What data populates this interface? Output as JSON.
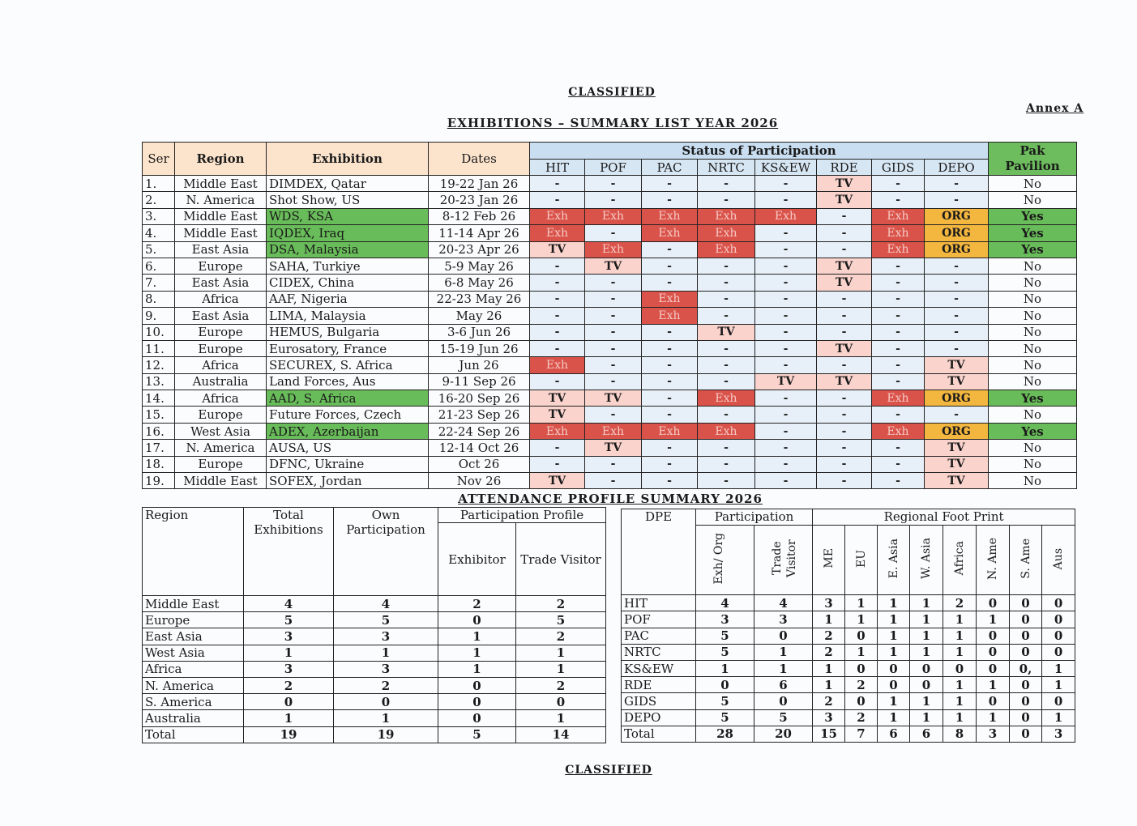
{
  "header": {
    "classified_top": "CLASSIFIED",
    "annex": "Annex A",
    "title": "EXHIBITIONS – SUMMARY LIST YEAR 2026",
    "subtitle": "ATTENDANCE PROFILE SUMMARY 2026",
    "classified_bottom": "CLASSIFIED"
  },
  "colors": {
    "exhibitor": "#d9534a",
    "trade_visitor": "#f9d3cc",
    "organizer": "#f3b63e",
    "pavilion_yes": "#69bc5a",
    "status_header": "#c9def0",
    "peach_header": "#fbe3cc"
  },
  "main_table": {
    "headers": {
      "ser": "Ser",
      "region": "Region",
      "exhibition": "Exhibition",
      "dates": "Dates",
      "status": "Status of Participation",
      "pak_pavilion": "Pak Pavilion",
      "dpe": [
        "HIT",
        "POF",
        "PAC",
        "NRTC",
        "KS&EW",
        "RDE",
        "GIDS",
        "DEPO"
      ]
    },
    "rows": [
      {
        "ser": "1.",
        "region": "Middle East",
        "exhibition": "DIMDEX, Qatar",
        "dates": "19-22 Jan 26",
        "status": [
          "-",
          "-",
          "-",
          "-",
          "-",
          "TV",
          "-",
          "-"
        ],
        "pavilion": "No"
      },
      {
        "ser": "2.",
        "region": "N. America",
        "exhibition": "Shot Show, US",
        "dates": "20-23 Jan 26",
        "status": [
          "-",
          "-",
          "-",
          "-",
          "-",
          "TV",
          "-",
          "-"
        ],
        "pavilion": "No"
      },
      {
        "ser": "3.",
        "region": "Middle East",
        "exhibition": "WDS, KSA",
        "dates": "8-12 Feb 26",
        "status": [
          "Exh",
          "Exh",
          "Exh",
          "Exh",
          "Exh",
          "-",
          "Exh",
          "ORG"
        ],
        "pavilion": "Yes"
      },
      {
        "ser": "4.",
        "region": "Middle East",
        "exhibition": "IQDEX, Iraq",
        "dates": "11-14 Apr 26",
        "status": [
          "Exh",
          "-",
          "Exh",
          "Exh",
          "-",
          "-",
          "Exh",
          "ORG"
        ],
        "pavilion": "Yes"
      },
      {
        "ser": "5.",
        "region": "East Asia",
        "exhibition": "DSA, Malaysia",
        "dates": "20-23 Apr 26",
        "status": [
          "TV",
          "Exh",
          "-",
          "Exh",
          "-",
          "-",
          "Exh",
          "ORG"
        ],
        "pavilion": "Yes"
      },
      {
        "ser": "6.",
        "region": "Europe",
        "exhibition": "SAHA, Turkiye",
        "dates": "5-9 May 26",
        "status": [
          "-",
          "TV",
          "-",
          "-",
          "-",
          "TV",
          "-",
          "-"
        ],
        "pavilion": "No"
      },
      {
        "ser": "7.",
        "region": "East Asia",
        "exhibition": "CIDEX, China",
        "dates": "6-8 May 26",
        "status": [
          "-",
          "-",
          "-",
          "-",
          "-",
          "TV",
          "-",
          "-"
        ],
        "pavilion": "No"
      },
      {
        "ser": "8.",
        "region": "Africa",
        "exhibition": "AAF, Nigeria",
        "dates": "22-23 May 26",
        "status": [
          "-",
          "-",
          "Exh",
          "-",
          "-",
          "-",
          "-",
          "-"
        ],
        "pavilion": "No"
      },
      {
        "ser": "9.",
        "region": "East Asia",
        "exhibition": "LIMA, Malaysia",
        "dates": "May 26",
        "status": [
          "-",
          "-",
          "Exh",
          "-",
          "-",
          "-",
          "-",
          "-"
        ],
        "pavilion": "No"
      },
      {
        "ser": "10.",
        "region": "Europe",
        "exhibition": "HEMUS, Bulgaria",
        "dates": "3-6 Jun 26",
        "status": [
          "-",
          "-",
          "-",
          "TV",
          "-",
          "-",
          "-",
          "-"
        ],
        "pavilion": "No"
      },
      {
        "ser": "11.",
        "region": "Europe",
        "exhibition": "Eurosatory, France",
        "dates": "15-19 Jun 26",
        "status": [
          "-",
          "-",
          "-",
          "-",
          "-",
          "TV",
          "-",
          "-"
        ],
        "pavilion": "No"
      },
      {
        "ser": "12.",
        "region": "Africa",
        "exhibition": "SECUREX, S. Africa",
        "dates": "Jun 26",
        "status": [
          "Exh",
          "-",
          "-",
          "-",
          "-",
          "-",
          "-",
          "TV"
        ],
        "pavilion": "No"
      },
      {
        "ser": "13.",
        "region": "Australia",
        "exhibition": "Land Forces, Aus",
        "dates": "9-11 Sep 26",
        "status": [
          "-",
          "-",
          "-",
          "-",
          "TV",
          "TV",
          "-",
          "TV"
        ],
        "pavilion": "No"
      },
      {
        "ser": "14.",
        "region": "Africa",
        "exhibition": "AAD, S. Africa",
        "dates": "16-20 Sep 26",
        "status": [
          "TV",
          "TV",
          "-",
          "Exh",
          "-",
          "-",
          "Exh",
          "ORG"
        ],
        "pavilion": "Yes"
      },
      {
        "ser": "15.",
        "region": "Europe",
        "exhibition": "Future Forces, Czech",
        "dates": "21-23 Sep 26",
        "status": [
          "TV",
          "-",
          "-",
          "-",
          "-",
          "-",
          "-",
          "-"
        ],
        "pavilion": "No"
      },
      {
        "ser": "16.",
        "region": "West Asia",
        "exhibition": "ADEX, Azerbaijan",
        "dates": "22-24 Sep 26",
        "status": [
          "Exh",
          "Exh",
          "Exh",
          "Exh",
          "-",
          "-",
          "Exh",
          "ORG"
        ],
        "pavilion": "Yes"
      },
      {
        "ser": "17.",
        "region": "N. America",
        "exhibition": "AUSA, US",
        "dates": "12-14 Oct 26",
        "status": [
          "-",
          "TV",
          "-",
          "-",
          "-",
          "-",
          "-",
          "TV"
        ],
        "pavilion": "No"
      },
      {
        "ser": "18.",
        "region": "Europe",
        "exhibition": "DFNC, Ukraine",
        "dates": "Oct 26",
        "status": [
          "-",
          "-",
          "-",
          "-",
          "-",
          "-",
          "-",
          "TV"
        ],
        "pavilion": "No"
      },
      {
        "ser": "19.",
        "region": "Middle East",
        "exhibition": "SOFEX, Jordan",
        "dates": "Nov 26",
        "status": [
          "TV",
          "-",
          "-",
          "-",
          "-",
          "-",
          "-",
          "TV"
        ],
        "pavilion": "No"
      }
    ]
  },
  "region_table": {
    "headers": {
      "region": "Region",
      "total": "Total Exhibitions",
      "own": "Own Participation",
      "profile": "Participation Profile",
      "exhibitor": "Exhibitor",
      "trade_visitor": "Trade Visitor"
    },
    "rows": [
      {
        "region": "Middle East",
        "total": "4",
        "own": "4",
        "exh": "2",
        "tv": "2"
      },
      {
        "region": "Europe",
        "total": "5",
        "own": "5",
        "exh": "0",
        "tv": "5"
      },
      {
        "region": "East Asia",
        "total": "3",
        "own": "3",
        "exh": "1",
        "tv": "2"
      },
      {
        "region": "West Asia",
        "total": "1",
        "own": "1",
        "exh": "1",
        "tv": "1"
      },
      {
        "region": "Africa",
        "total": "3",
        "own": "3",
        "exh": "1",
        "tv": "1"
      },
      {
        "region": "N. America",
        "total": "2",
        "own": "2",
        "exh": "0",
        "tv": "2"
      },
      {
        "region": "S. America",
        "total": "0",
        "own": "0",
        "exh": "0",
        "tv": "0"
      },
      {
        "region": "Australia",
        "total": "1",
        "own": "1",
        "exh": "0",
        "tv": "1"
      },
      {
        "region": "Total",
        "total": "19",
        "own": "19",
        "exh": "5",
        "tv": "14"
      }
    ]
  },
  "dpe_table": {
    "headers": {
      "dpe": "DPE",
      "participation": "Participation",
      "footprint": "Regional Foot Print",
      "exh_org": "Exh/ Org",
      "trade_visitor": "Trade Visitor",
      "regions": [
        "ME",
        "EU",
        "E. Asia",
        "W. Asia",
        "Africa",
        "N. Ame",
        "S. Ame",
        "Aus"
      ]
    },
    "rows": [
      {
        "dpe": "HIT",
        "exh": "4",
        "tv": "4",
        "fp": [
          "3",
          "1",
          "1",
          "1",
          "2",
          "0",
          "0",
          "0"
        ]
      },
      {
        "dpe": "POF",
        "exh": "3",
        "tv": "3",
        "fp": [
          "1",
          "1",
          "1",
          "1",
          "1",
          "1",
          "0",
          "0"
        ]
      },
      {
        "dpe": "PAC",
        "exh": "5",
        "tv": "0",
        "fp": [
          "2",
          "0",
          "1",
          "1",
          "1",
          "0",
          "0",
          "0"
        ]
      },
      {
        "dpe": "NRTC",
        "exh": "5",
        "tv": "1",
        "fp": [
          "2",
          "1",
          "1",
          "1",
          "1",
          "0",
          "0",
          "0"
        ]
      },
      {
        "dpe": "KS&EW",
        "exh": "1",
        "tv": "1",
        "fp": [
          "1",
          "0",
          "0",
          "0",
          "0",
          "0",
          "0,",
          "1"
        ]
      },
      {
        "dpe": "RDE",
        "exh": "0",
        "tv": "6",
        "fp": [
          "1",
          "2",
          "0",
          "0",
          "1",
          "1",
          "0",
          "1"
        ]
      },
      {
        "dpe": "GIDS",
        "exh": "5",
        "tv": "0",
        "fp": [
          "2",
          "0",
          "1",
          "1",
          "1",
          "0",
          "0",
          "0"
        ]
      },
      {
        "dpe": "DEPO",
        "exh": "5",
        "tv": "5",
        "fp": [
          "3",
          "2",
          "1",
          "1",
          "1",
          "1",
          "0",
          "1"
        ]
      },
      {
        "dpe": "Total",
        "exh": "28",
        "tv": "20",
        "fp": [
          "15",
          "7",
          "6",
          "6",
          "8",
          "3",
          "0",
          "3"
        ]
      }
    ]
  }
}
